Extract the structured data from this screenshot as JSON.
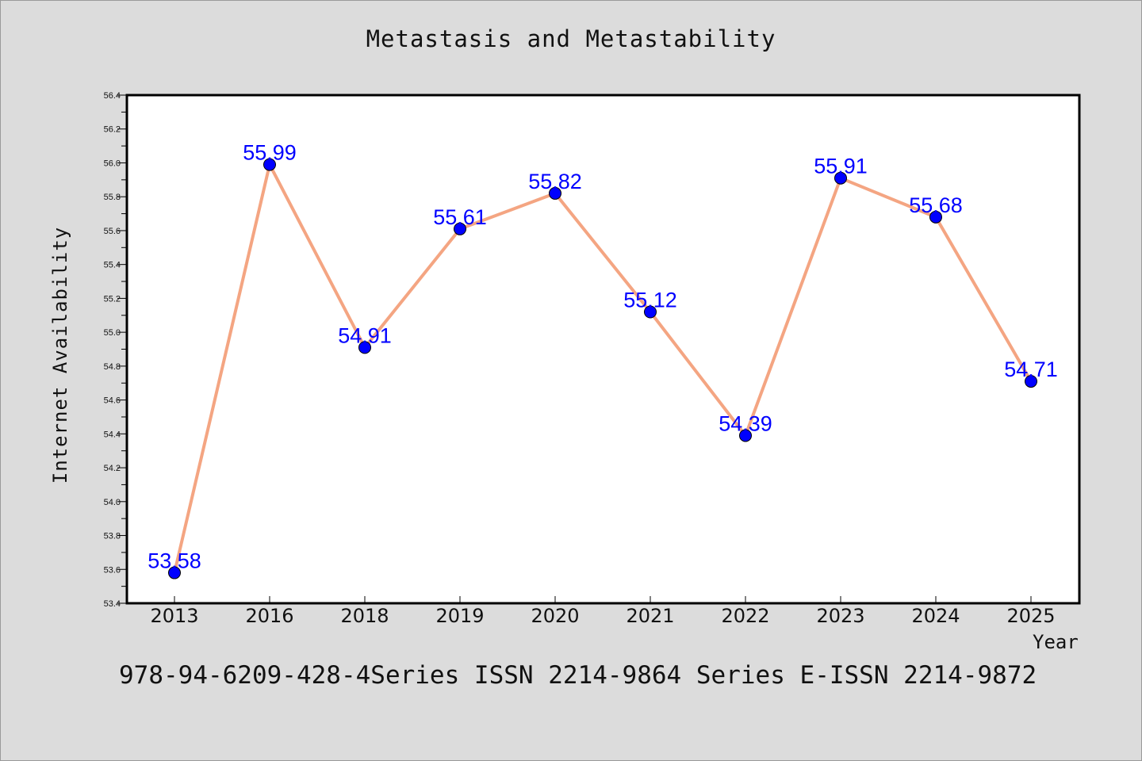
{
  "chart_data": {
    "type": "line",
    "title": "Metastasis and Metastability",
    "xlabel": "Year",
    "ylabel": "Internet Availability",
    "categories": [
      "2013",
      "2016",
      "2018",
      "2019",
      "2020",
      "2021",
      "2022",
      "2023",
      "2024",
      "2025"
    ],
    "values": [
      53.58,
      55.99,
      54.91,
      55.61,
      55.82,
      55.12,
      54.39,
      55.91,
      55.68,
      54.71
    ],
    "data_labels": [
      "53.58",
      "55.99",
      "54.91",
      "55.61",
      "55.82",
      "55.12",
      "54.39",
      "55.91",
      "55.68",
      "54.71"
    ],
    "ylim": [
      53.4,
      56.4
    ],
    "yticks": [
      "53.4",
      "53.6",
      "53.8",
      "54.0",
      "54.2",
      "54.4",
      "54.6",
      "54.8",
      "55.0",
      "55.2",
      "55.4",
      "55.6",
      "55.8",
      "56.0",
      "56.2",
      "56.4"
    ],
    "grid": false,
    "colors": {
      "line": "#f4a582",
      "marker": "#0000ff",
      "label": "#0000ff",
      "plot_background": "#ffffff",
      "page_background": "#dcdcdc"
    }
  },
  "footer": {
    "text": "978-94-6209-428-4Series ISSN 2214-9864 Series E-ISSN 2214-9872"
  }
}
